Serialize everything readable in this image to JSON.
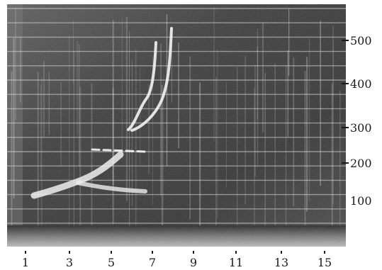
{
  "figure": {
    "x_ticks": [
      "1",
      "3",
      "5",
      "7",
      "9",
      "11",
      "13",
      "15"
    ],
    "y_ticks": [
      "500",
      "400",
      "300",
      "200",
      "100"
    ],
    "colors": {
      "background": "#3a3a3a",
      "grid": "#d8d8d8",
      "trace": "#f2f2f2",
      "paper": "#ffffff",
      "ink": "#1a1a1a"
    }
  }
}
